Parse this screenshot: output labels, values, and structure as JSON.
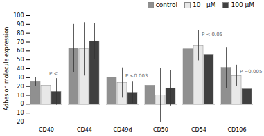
{
  "chart_data": {
    "type": "bar",
    "categories": [
      "CD40",
      "CD44",
      "CD49d",
      "CD50",
      "CD54",
      "CD106"
    ],
    "series": [
      {
        "name": "control",
        "color": "#909090",
        "values": [
          25,
          63,
          30,
          21,
          62,
          41
        ],
        "errors": [
          5,
          27,
          22,
          18,
          17,
          23
        ]
      },
      {
        "name": "10   μM",
        "color": "#e8e8e8",
        "values": [
          21,
          62,
          24,
          10,
          66,
          32
        ],
        "errors": [
          13,
          30,
          17,
          30,
          17,
          12
        ]
      },
      {
        "name": "100 μM",
        "color": "#404040",
        "values": [
          14,
          71,
          13,
          18,
          56,
          17
        ],
        "errors": [
          15,
          20,
          12,
          20,
          20,
          12
        ]
      }
    ],
    "ylabel": "Adhesion molecule expression",
    "ylim": [
      -20,
      100
    ],
    "yticks": [
      -20,
      -10,
      0,
      10,
      20,
      30,
      40,
      50,
      60,
      70,
      80,
      90,
      100
    ],
    "legend": "upper right",
    "annotations": [
      {
        "text": "P < ...",
        "category": "CD40",
        "y": 34
      },
      {
        "text": "P <0.003",
        "category": "CD49d",
        "y": 32
      },
      {
        "text": "P < 0.05",
        "category": "CD54",
        "y": 79
      },
      {
        "text": "P ~0.005",
        "category": "CD106",
        "y": 37
      }
    ]
  }
}
